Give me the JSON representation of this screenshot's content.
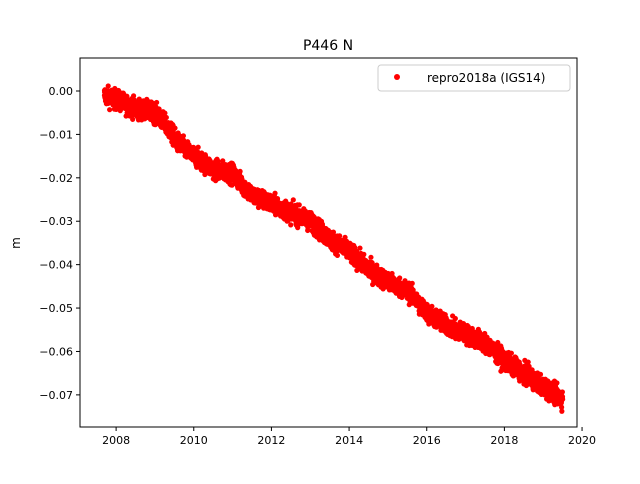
{
  "chart_data": {
    "type": "scatter",
    "title": "P446 N",
    "xlabel": "",
    "ylabel": "m",
    "xlim": [
      2007.07,
      2019.87
    ],
    "ylim": [
      -0.0774,
      0.0076
    ],
    "xticks": [
      2008,
      2010,
      2012,
      2014,
      2016,
      2018,
      2020
    ],
    "xtick_labels": [
      "2008",
      "2010",
      "2012",
      "2014",
      "2016",
      "2018",
      "2020"
    ],
    "yticks": [
      0.0,
      -0.01,
      -0.02,
      -0.03,
      -0.04,
      -0.05,
      -0.06,
      -0.07
    ],
    "ytick_labels": [
      "0.00",
      "−0.01",
      "−0.02",
      "−0.03",
      "−0.04",
      "−0.05",
      "−0.06",
      "−0.07"
    ],
    "grid": false,
    "legend": {
      "placement": "top-right",
      "entries": [
        "repro2018a (IGS14)"
      ]
    },
    "series": [
      {
        "name": "repro2018a (IGS14)",
        "color": "#ff0000",
        "marker": "dot",
        "scatter_spread_m": 0.0018,
        "x": [
          2007.7,
          2008.0,
          2008.5,
          2009.0,
          2009.3,
          2009.6,
          2010.0,
          2010.5,
          2011.0,
          2011.5,
          2012.0,
          2012.5,
          2013.0,
          2013.5,
          2014.0,
          2014.5,
          2015.0,
          2015.5,
          2016.0,
          2016.5,
          2017.0,
          2017.5,
          2018.0,
          2018.5,
          2019.0,
          2019.5
        ],
        "y": [
          -0.001,
          -0.002,
          -0.004,
          -0.005,
          -0.008,
          -0.012,
          -0.015,
          -0.018,
          -0.019,
          -0.024,
          -0.026,
          -0.028,
          -0.03,
          -0.034,
          -0.037,
          -0.041,
          -0.044,
          -0.046,
          -0.051,
          -0.054,
          -0.056,
          -0.058,
          -0.062,
          -0.065,
          -0.068,
          -0.071
        ]
      }
    ]
  }
}
